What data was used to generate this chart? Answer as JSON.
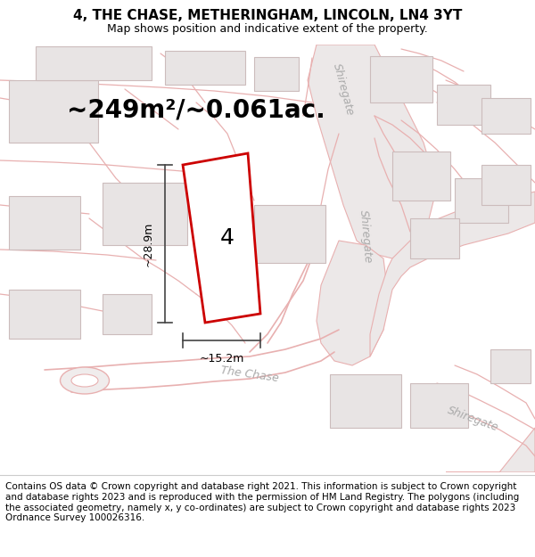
{
  "title": "4, THE CHASE, METHERINGHAM, LINCOLN, LN4 3YT",
  "subtitle": "Map shows position and indicative extent of the property.",
  "footer": "Contains OS data © Crown copyright and database right 2021. This information is subject to Crown copyright and database rights 2023 and is reproduced with the permission of HM Land Registry. The polygons (including the associated geometry, namely x, y co-ordinates) are subject to Crown copyright and database rights 2023 Ordnance Survey 100026316.",
  "area_text": "~249m²/~0.061ac.",
  "width_text": "~15.2m",
  "height_text": "~28.9m",
  "property_number": "4",
  "map_bg": "#ffffff",
  "road_line_color": "#e8b0b0",
  "shiregate_road_color": "#e0d8d8",
  "shiregate_road_edge": "#ccbcbc",
  "building_face_color": "#e8e4e4",
  "building_edge_color": "#ccbcbc",
  "property_outline_color": "#cc0000",
  "dim_color": "#444444",
  "road_label_color": "#aaaaaa",
  "title_fontsize": 11,
  "subtitle_fontsize": 9,
  "footer_fontsize": 7.5,
  "area_fontsize": 20,
  "dim_fontsize": 9,
  "property_label_fontsize": 18,
  "road_label_fontsize": 9
}
